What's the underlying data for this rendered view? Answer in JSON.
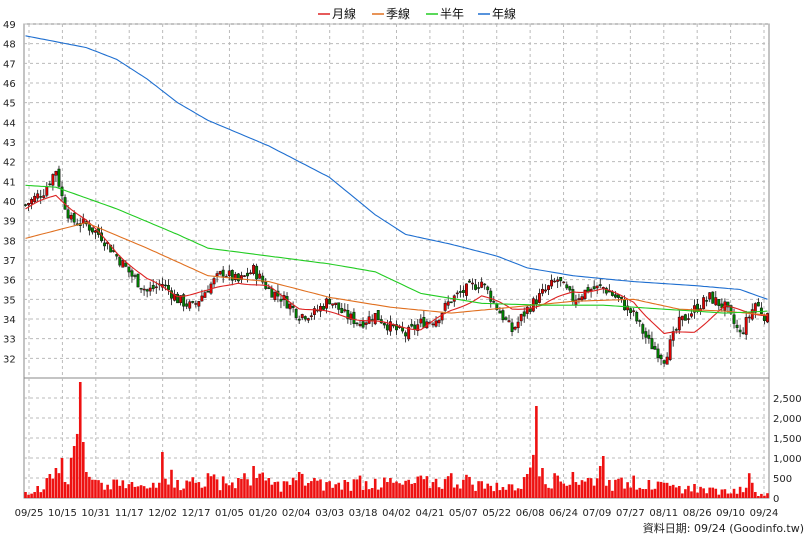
{
  "chart_data": {
    "type": "candlestick",
    "legend": [
      {
        "name": "月線",
        "color": "#dd2222"
      },
      {
        "name": "季線",
        "color": "#e07020"
      },
      {
        "name": "半年",
        "color": "#22cc22"
      },
      {
        "name": "年線",
        "color": "#1f6fd0"
      }
    ],
    "price_axis": {
      "min": 31,
      "max": 49,
      "ticks": [
        32,
        33,
        34,
        35,
        36,
        37,
        38,
        39,
        40,
        41,
        42,
        43,
        44,
        45,
        46,
        47,
        48,
        49
      ]
    },
    "volume_axis": {
      "min": 0,
      "max": 3000,
      "ticks": [
        0,
        500,
        1000,
        1500,
        2000,
        2500
      ],
      "tick_labels": [
        "0",
        "500",
        "1,000",
        "1,500",
        "2,000",
        "2,500"
      ]
    },
    "x_labels": [
      "09/25",
      "10/15",
      "10/31",
      "11/17",
      "12/02",
      "12/17",
      "01/05",
      "01/20",
      "02/04",
      "03/03",
      "03/18",
      "04/02",
      "04/21",
      "05/07",
      "05/22",
      "06/08",
      "06/24",
      "07/09",
      "07/27",
      "08/11",
      "08/26",
      "09/10",
      "09/24"
    ],
    "candle_count": 245,
    "close_anchors": [
      [
        0,
        39.8
      ],
      [
        6,
        40.5
      ],
      [
        10,
        41.6
      ],
      [
        12,
        40.2
      ],
      [
        15,
        39.0
      ],
      [
        20,
        38.8
      ],
      [
        25,
        38.2
      ],
      [
        30,
        37.2
      ],
      [
        35,
        36.2
      ],
      [
        40,
        35.4
      ],
      [
        45,
        35.8
      ],
      [
        50,
        35.0
      ],
      [
        55,
        34.6
      ],
      [
        60,
        35.6
      ],
      [
        65,
        36.4
      ],
      [
        70,
        35.9
      ],
      [
        75,
        36.5
      ],
      [
        80,
        35.5
      ],
      [
        85,
        35.0
      ],
      [
        90,
        34.2
      ],
      [
        95,
        34.3
      ],
      [
        100,
        35.0
      ],
      [
        105,
        34.2
      ],
      [
        110,
        33.8
      ],
      [
        115,
        34.2
      ],
      [
        120,
        33.6
      ],
      [
        125,
        33.2
      ],
      [
        130,
        33.8
      ],
      [
        135,
        34.0
      ],
      [
        140,
        35.0
      ],
      [
        145,
        35.5
      ],
      [
        150,
        35.9
      ],
      [
        155,
        34.6
      ],
      [
        160,
        33.4
      ],
      [
        165,
        34.5
      ],
      [
        170,
        35.3
      ],
      [
        175,
        36.0
      ],
      [
        180,
        35.0
      ],
      [
        185,
        35.5
      ],
      [
        190,
        35.6
      ],
      [
        195,
        35.0
      ],
      [
        200,
        34.2
      ],
      [
        205,
        32.8
      ],
      [
        210,
        32.0
      ],
      [
        215,
        33.8
      ],
      [
        220,
        34.5
      ],
      [
        225,
        35.1
      ],
      [
        230,
        34.6
      ],
      [
        235,
        33.2
      ],
      [
        240,
        34.8
      ],
      [
        244,
        34.0
      ]
    ],
    "ma_month": [
      [
        0,
        39.6
      ],
      [
        10,
        40.3
      ],
      [
        20,
        39.0
      ],
      [
        30,
        37.4
      ],
      [
        40,
        36.0
      ],
      [
        50,
        35.2
      ],
      [
        60,
        35.4
      ],
      [
        70,
        35.9
      ],
      [
        80,
        35.6
      ],
      [
        90,
        34.6
      ],
      [
        100,
        34.3
      ],
      [
        110,
        34.0
      ],
      [
        120,
        33.7
      ],
      [
        130,
        33.5
      ],
      [
        140,
        34.4
      ],
      [
        150,
        35.2
      ],
      [
        160,
        34.5
      ],
      [
        170,
        34.7
      ],
      [
        180,
        35.4
      ],
      [
        190,
        35.5
      ],
      [
        200,
        34.9
      ],
      [
        210,
        33.2
      ],
      [
        220,
        33.4
      ],
      [
        230,
        34.6
      ],
      [
        244,
        34.2
      ]
    ],
    "ma_season": [
      [
        0,
        38.1
      ],
      [
        20,
        38.9
      ],
      [
        40,
        37.6
      ],
      [
        60,
        36.2
      ],
      [
        80,
        35.9
      ],
      [
        100,
        35.1
      ],
      [
        120,
        34.6
      ],
      [
        140,
        34.3
      ],
      [
        160,
        34.6
      ],
      [
        180,
        34.9
      ],
      [
        200,
        35.0
      ],
      [
        215,
        34.5
      ],
      [
        230,
        34.4
      ],
      [
        244,
        34.2
      ]
    ],
    "ma_half": [
      [
        0,
        40.8
      ],
      [
        10,
        40.7
      ],
      [
        30,
        39.6
      ],
      [
        50,
        38.3
      ],
      [
        60,
        37.6
      ],
      [
        80,
        37.2
      ],
      [
        100,
        36.8
      ],
      [
        115,
        36.4
      ],
      [
        130,
        35.3
      ],
      [
        150,
        34.8
      ],
      [
        170,
        34.7
      ],
      [
        190,
        34.7
      ],
      [
        210,
        34.5
      ],
      [
        230,
        34.3
      ],
      [
        244,
        34.4
      ]
    ],
    "ma_year": [
      [
        0,
        48.4
      ],
      [
        20,
        47.8
      ],
      [
        30,
        47.2
      ],
      [
        40,
        46.2
      ],
      [
        50,
        45.0
      ],
      [
        60,
        44.1
      ],
      [
        80,
        42.8
      ],
      [
        100,
        41.2
      ],
      [
        115,
        39.3
      ],
      [
        125,
        38.3
      ],
      [
        140,
        37.8
      ],
      [
        155,
        37.2
      ],
      [
        165,
        36.6
      ],
      [
        180,
        36.2
      ],
      [
        200,
        35.9
      ],
      [
        220,
        35.7
      ],
      [
        235,
        35.5
      ],
      [
        244,
        35.0
      ]
    ],
    "volume_spikes": [
      [
        0,
        150
      ],
      [
        4,
        300
      ],
      [
        8,
        600
      ],
      [
        10,
        750
      ],
      [
        12,
        1000
      ],
      [
        13,
        400
      ],
      [
        16,
        1300
      ],
      [
        18,
        2900
      ],
      [
        19,
        1400
      ],
      [
        20,
        650
      ],
      [
        25,
        380
      ],
      [
        30,
        460
      ],
      [
        35,
        400
      ],
      [
        38,
        320
      ],
      [
        42,
        380
      ],
      [
        45,
        1150
      ],
      [
        50,
        450
      ],
      [
        55,
        520
      ],
      [
        60,
        620
      ],
      [
        65,
        540
      ],
      [
        70,
        500
      ],
      [
        75,
        800
      ],
      [
        80,
        500
      ],
      [
        85,
        420
      ],
      [
        90,
        650
      ],
      [
        95,
        500
      ],
      [
        100,
        420
      ],
      [
        105,
        450
      ],
      [
        110,
        560
      ],
      [
        115,
        480
      ],
      [
        120,
        500
      ],
      [
        125,
        430
      ],
      [
        130,
        560
      ],
      [
        135,
        480
      ],
      [
        140,
        620
      ],
      [
        145,
        580
      ],
      [
        150,
        420
      ],
      [
        155,
        380
      ],
      [
        160,
        340
      ],
      [
        165,
        600
      ],
      [
        168,
        2300
      ],
      [
        170,
        750
      ],
      [
        175,
        560
      ],
      [
        180,
        650
      ],
      [
        185,
        500
      ],
      [
        190,
        1050
      ],
      [
        192,
        450
      ],
      [
        195,
        480
      ],
      [
        200,
        560
      ],
      [
        205,
        450
      ],
      [
        210,
        380
      ],
      [
        215,
        300
      ],
      [
        220,
        350
      ],
      [
        225,
        260
      ],
      [
        230,
        220
      ],
      [
        235,
        280
      ],
      [
        238,
        620
      ],
      [
        240,
        150
      ],
      [
        244,
        120
      ]
    ]
  },
  "footer": {
    "text": "資料日期: 09/24  (Goodinfo.tw)"
  }
}
